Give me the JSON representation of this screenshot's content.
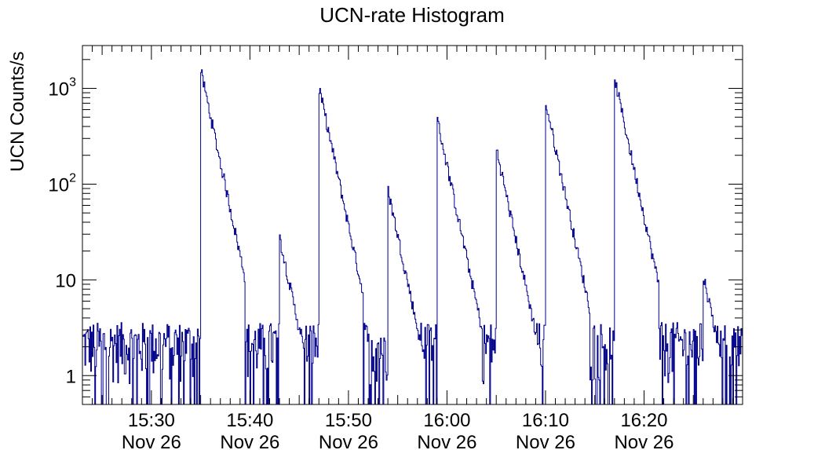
{
  "chart_data": {
    "type": "histogram",
    "title": "UCN-rate Histogram",
    "xlabel": "",
    "ylabel": "UCN Counts/s",
    "x_scale": "time",
    "y_scale": "log",
    "xlim": [
      "15:23",
      "16:30"
    ],
    "ylim": [
      0.5,
      2800
    ],
    "grid": false,
    "legend": "none",
    "line_color": "#00008b",
    "x_ticks": [
      {
        "time": "15:30",
        "date": "Nov 26"
      },
      {
        "time": "15:40",
        "date": "Nov 26"
      },
      {
        "time": "15:50",
        "date": "Nov 26"
      },
      {
        "time": "16:00",
        "date": "Nov 26"
      },
      {
        "time": "16:10",
        "date": "Nov 26"
      },
      {
        "time": "16:20",
        "date": "Nov 26"
      }
    ],
    "y_ticks": [
      {
        "base": "1",
        "exp": "",
        "value": 1
      },
      {
        "base": "10",
        "exp": "",
        "value": 10
      },
      {
        "base": "10",
        "exp": "2",
        "value": 100
      },
      {
        "base": "10",
        "exp": "3",
        "value": 1000
      }
    ],
    "background_level": 2,
    "peaks": [
      {
        "time": "15:35",
        "value": 1500
      },
      {
        "time": "15:43",
        "value": 27
      },
      {
        "time": "15:47",
        "value": 1000
      },
      {
        "time": "15:54",
        "value": 85
      },
      {
        "time": "15:59",
        "value": 460
      },
      {
        "time": "16:05",
        "value": 230
      },
      {
        "time": "16:10",
        "value": 700
      },
      {
        "time": "16:17",
        "value": 1250
      },
      {
        "time": "16:26",
        "value": 11
      }
    ]
  }
}
